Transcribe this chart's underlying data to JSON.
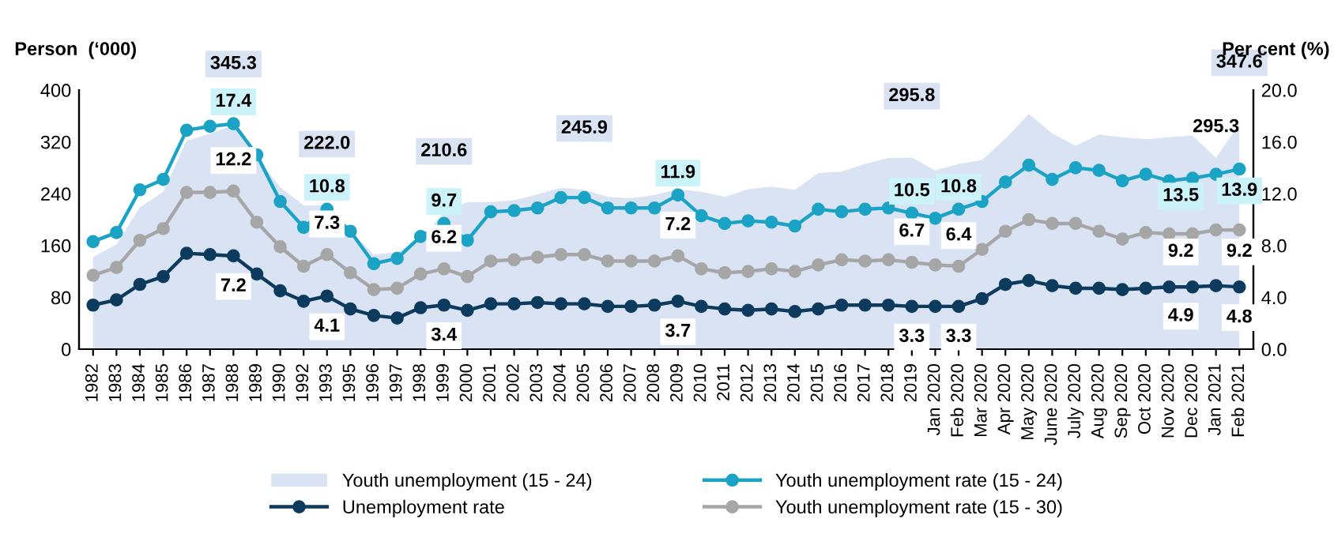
{
  "chart_data": {
    "type": "line",
    "ylabel": "Person  (‘000)",
    "y2label": "Per cent (%)",
    "categories": [
      "1982",
      "1983",
      "1984",
      "1985",
      "1986",
      "1987",
      "1988",
      "1989",
      "1990",
      "1992",
      "1993",
      "1995",
      "1996",
      "1997",
      "1998",
      "1999",
      "2000",
      "2001",
      "2002",
      "2003",
      "2004",
      "2005",
      "2006",
      "2007",
      "2008",
      "2009",
      "2010",
      "2011",
      "2012",
      "2013",
      "2014",
      "2015",
      "2016",
      "2017",
      "2018",
      "2019",
      "Jan 2020",
      "Feb 2020",
      "Mar 2020",
      "Apr 2020",
      "May 2020",
      "June 2020",
      "July 2020",
      "Aug 2020",
      "Sep 2020",
      "Oct 2020",
      "Nov 2020",
      "Dec 2020",
      "Jan 2021",
      "Feb 2021"
    ],
    "ylim": [
      0,
      400
    ],
    "yticks": [
      0,
      80,
      160,
      240,
      320,
      400
    ],
    "y2lim": [
      0,
      20
    ],
    "y2ticks": [
      {
        "value": 0,
        "label": "0.0"
      },
      {
        "value": 4,
        "label": "4.0"
      },
      {
        "value": 8,
        "label": "8.0"
      },
      {
        "value": 12,
        "label": "12.0"
      },
      {
        "value": 16,
        "label": "16.0"
      },
      {
        "value": 20,
        "label": "20.0"
      }
    ],
    "grid": false,
    "legend": "bottom",
    "series": [
      {
        "name": "Youth unemployment (15 - 24)",
        "type": "area",
        "color": "#dae3f3",
        "values": [
          142,
          162,
          219,
          243,
          322,
          333,
          345.3,
          296,
          250,
          222,
          222.0,
          183,
          146,
          150,
          170,
          210.6,
          227,
          227,
          230,
          239,
          249,
          245.9,
          235,
          233,
          238,
          247,
          243,
          235,
          247,
          251,
          246,
          272,
          274,
          286,
          295,
          295.8,
          276,
          286,
          292,
          325,
          363,
          333,
          314,
          331,
          327,
          324,
          327,
          330,
          295.3,
          347.6
        ],
        "value_labels": [
          null,
          null,
          null,
          null,
          null,
          null,
          "345.3",
          null,
          null,
          null,
          "222.0",
          null,
          null,
          null,
          null,
          "210.6",
          null,
          null,
          null,
          null,
          null,
          "245.9",
          null,
          null,
          null,
          null,
          null,
          null,
          null,
          null,
          null,
          null,
          null,
          null,
          null,
          "295.8",
          null,
          null,
          null,
          null,
          null,
          null,
          null,
          null,
          null,
          null,
          null,
          null,
          "295.3",
          "347.6"
        ]
      },
      {
        "name": "Unemployment rate",
        "marker": "circle",
        "axis": "y2",
        "color": "#0d3b5e",
        "values": [
          3.4,
          3.8,
          5.0,
          5.6,
          7.4,
          7.3,
          7.2,
          5.8,
          4.5,
          3.7,
          4.1,
          3.1,
          2.6,
          2.4,
          3.2,
          3.4,
          3.0,
          3.5,
          3.5,
          3.6,
          3.5,
          3.5,
          3.3,
          3.3,
          3.4,
          3.7,
          3.3,
          3.1,
          3.0,
          3.1,
          2.9,
          3.1,
          3.4,
          3.4,
          3.4,
          3.3,
          3.3,
          3.3,
          3.9,
          5.0,
          5.3,
          4.9,
          4.7,
          4.7,
          4.6,
          4.7,
          4.8,
          4.8,
          4.9,
          4.8
        ],
        "value_labels": [
          null,
          null,
          null,
          null,
          null,
          null,
          "7.2",
          null,
          null,
          null,
          "4.1",
          null,
          null,
          null,
          null,
          "3.4",
          null,
          null,
          null,
          null,
          null,
          null,
          null,
          null,
          null,
          "3.7",
          null,
          null,
          null,
          null,
          null,
          null,
          null,
          null,
          null,
          "3.3",
          null,
          "3.3",
          null,
          null,
          null,
          null,
          null,
          null,
          null,
          null,
          null,
          null,
          "4.9",
          "4.8"
        ]
      },
      {
        "name": "Youth unemployment rate (15 - 24)",
        "marker": "circle",
        "axis": "y2",
        "color": "#1ba3c6",
        "values": [
          8.3,
          9.0,
          12.3,
          13.1,
          16.9,
          17.2,
          17.4,
          15.0,
          11.4,
          9.4,
          10.8,
          9.1,
          6.6,
          7.0,
          8.7,
          9.7,
          8.4,
          10.6,
          10.7,
          10.9,
          11.7,
          11.7,
          10.9,
          10.9,
          10.9,
          11.9,
          10.3,
          9.7,
          9.9,
          9.8,
          9.5,
          10.8,
          10.6,
          10.8,
          10.9,
          10.5,
          10.1,
          10.8,
          11.4,
          12.9,
          14.2,
          13.1,
          14.0,
          13.8,
          13.0,
          13.5,
          13.0,
          13.2,
          13.5,
          13.9
        ],
        "value_labels": [
          null,
          null,
          null,
          null,
          null,
          null,
          "17.4",
          null,
          null,
          null,
          "10.8",
          null,
          null,
          null,
          null,
          "9.7",
          null,
          null,
          null,
          null,
          null,
          null,
          null,
          null,
          null,
          "11.9",
          null,
          null,
          null,
          null,
          null,
          null,
          null,
          null,
          null,
          "10.5",
          null,
          "10.8",
          null,
          null,
          null,
          null,
          null,
          null,
          null,
          null,
          null,
          null,
          "13.5",
          "13.9"
        ]
      },
      {
        "name": "Youth unemployment rate (15 - 30)",
        "marker": "circle",
        "axis": "y2",
        "color": "#a6a6a6",
        "values": [
          5.7,
          6.3,
          8.4,
          9.3,
          12.1,
          12.1,
          12.2,
          9.8,
          7.9,
          6.4,
          7.3,
          5.9,
          4.6,
          4.7,
          5.8,
          6.2,
          5.6,
          6.8,
          6.9,
          7.1,
          7.3,
          7.3,
          6.8,
          6.8,
          6.8,
          7.2,
          6.2,
          5.9,
          6.0,
          6.2,
          6.0,
          6.5,
          6.9,
          6.8,
          6.9,
          6.7,
          6.5,
          6.4,
          7.7,
          9.1,
          10.0,
          9.7,
          9.7,
          9.1,
          8.5,
          9.0,
          8.9,
          8.9,
          9.2,
          9.2
        ],
        "value_labels": [
          null,
          null,
          null,
          null,
          null,
          null,
          "12.2",
          null,
          null,
          null,
          "7.3",
          null,
          null,
          null,
          null,
          "6.2",
          null,
          null,
          null,
          null,
          null,
          null,
          null,
          null,
          null,
          "7.2",
          null,
          null,
          null,
          null,
          null,
          null,
          null,
          null,
          null,
          "6.7",
          null,
          "6.4",
          null,
          null,
          null,
          null,
          null,
          null,
          null,
          null,
          null,
          null,
          "9.2",
          "9.2"
        ]
      }
    ]
  }
}
